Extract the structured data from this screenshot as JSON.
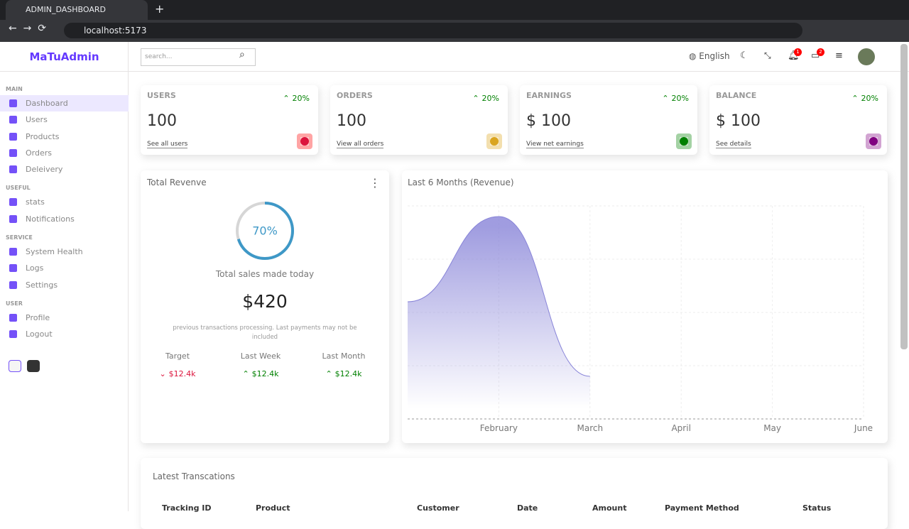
{
  "browser": {
    "tab_title": "ADMIN_DASHBOARD",
    "url": "localhost:5173"
  },
  "sidebar": {
    "logo": "MaTuAdmin",
    "sections": [
      {
        "title": "MAIN",
        "items": [
          "Dashboard",
          "Users",
          "Products",
          "Orders",
          "Deleivery"
        ]
      },
      {
        "title": "USEFUL",
        "items": [
          "stats",
          "Notifications"
        ]
      },
      {
        "title": "SERVICE",
        "items": [
          "System Health",
          "Logs",
          "Settings"
        ]
      },
      {
        "title": "USER",
        "items": [
          "Profile",
          "Logout"
        ]
      }
    ]
  },
  "navbar": {
    "search_placeholder": "search...",
    "language": "English",
    "notifications": "1",
    "messages": "2"
  },
  "widgets": [
    {
      "title": "USERS",
      "percent": "20%",
      "value": "100",
      "link": "See all users",
      "icon_color": "crimson",
      "icon_bg": "rgba(255,0,0,0.2)"
    },
    {
      "title": "ORDERS",
      "percent": "20%",
      "value": "100",
      "link": "View all orders",
      "icon_color": "goldenrod",
      "icon_bg": "rgba(218,165,32,0.2)"
    },
    {
      "title": "EARNINGS",
      "percent": "20%",
      "value": "$ 100",
      "link": "View net earnings",
      "icon_color": "green",
      "icon_bg": "rgba(0,128,0,0.2)"
    },
    {
      "title": "BALANCE",
      "percent": "20%",
      "value": "$ 100",
      "link": "See details",
      "icon_color": "purple",
      "icon_bg": "rgba(128,0,128,0.2)"
    }
  ],
  "featured": {
    "title": "Total Revenve",
    "progress": {
      "value": 70,
      "label": "70%"
    },
    "subtitle": "Total sales made today",
    "amount": "$420",
    "note": "previous transactions processing. Last payments may not be included",
    "summary": [
      {
        "title": "Target",
        "value": "$12.4k",
        "trend": "down"
      },
      {
        "title": "Last Week",
        "value": "$12.4k",
        "trend": "up"
      },
      {
        "title": "Last Month",
        "value": "$12.4k",
        "trend": "up"
      }
    ]
  },
  "chart_data": {
    "type": "area",
    "title": "Last 6 Months (Revenue)",
    "categories": [
      null,
      "February",
      "March",
      "April",
      "May",
      "June"
    ],
    "values": [
      1100,
      1900,
      400,
      null,
      null,
      null
    ],
    "color": "#8884d8",
    "ylim": [
      0,
      2000
    ],
    "grid": true
  },
  "table": {
    "title": "Latest Transcations",
    "headers": [
      "Tracking ID",
      "Product",
      "Customer",
      "Date",
      "Amount",
      "Payment Method",
      "Status"
    ]
  }
}
